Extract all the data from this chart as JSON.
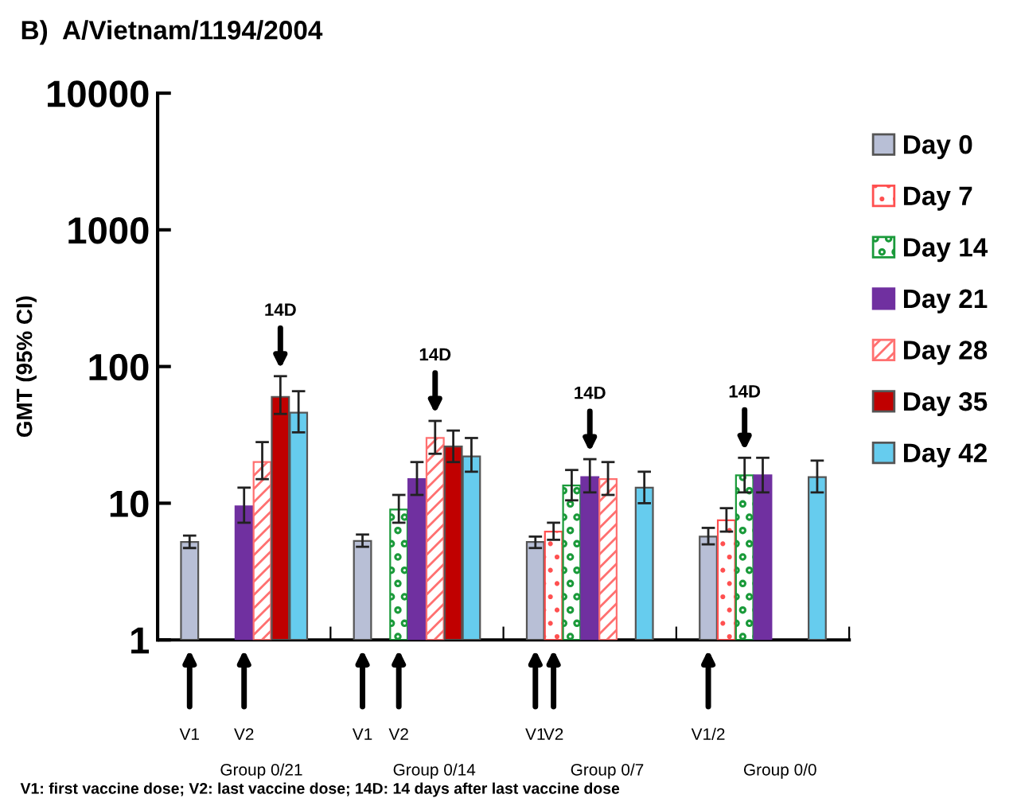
{
  "chart_data": {
    "type": "bar",
    "title": "B)  A/Vietnam/1194/2004",
    "ylabel": "GMT (95% CI)",
    "categories": [
      "Group 0/21",
      "Group 0/14",
      "Group 0/7",
      "Group 0/0"
    ],
    "log": true,
    "ylim": [
      1,
      10000
    ],
    "yticks": [
      1,
      10,
      100,
      1000,
      10000
    ],
    "grid": false,
    "legend": "right",
    "series": [
      {
        "name": "Day 0",
        "color": "#b8bfd6",
        "values": [
          5.2,
          5.3,
          5.2,
          5.7
        ],
        "errors": [
          [
            4.7,
            5.8
          ],
          [
            4.8,
            5.9
          ],
          [
            4.7,
            5.7
          ],
          [
            5.0,
            6.6
          ]
        ]
      },
      {
        "name": "Day 7",
        "color": "#ff5050",
        "values": [
          null,
          null,
          6.2,
          7.5
        ],
        "errors": [
          null,
          null,
          [
            5.4,
            7.2
          ],
          [
            6.2,
            9.2
          ]
        ]
      },
      {
        "name": "Day 14",
        "color": "#1a9a3a",
        "values": [
          null,
          9,
          13.5,
          16
        ],
        "errors": [
          null,
          [
            7.2,
            11.5
          ],
          [
            10.5,
            17.5
          ],
          [
            12,
            21.5
          ]
        ]
      },
      {
        "name": "Day 21",
        "color": "#7030a0",
        "values": [
          9.5,
          15,
          15.5,
          16
        ],
        "errors": [
          [
            7.2,
            13
          ],
          [
            11.5,
            20
          ],
          [
            12,
            21
          ],
          [
            12,
            21.5
          ]
        ]
      },
      {
        "name": "Day 28",
        "color": "#ff7070",
        "values": [
          20,
          30,
          15,
          null
        ],
        "errors": [
          [
            15,
            28
          ],
          [
            23,
            40
          ],
          [
            11.5,
            20
          ],
          null
        ]
      },
      {
        "name": "Day 35",
        "color": "#c00000",
        "values": [
          60,
          26,
          null,
          null
        ],
        "errors": [
          [
            45,
            85
          ],
          [
            20,
            34
          ],
          null,
          null
        ]
      },
      {
        "name": "Day 42",
        "color": "#66ccee",
        "values": [
          46,
          22,
          13,
          15.5
        ],
        "errors": [
          [
            33,
            66
          ],
          [
            17,
            30
          ],
          [
            10,
            17
          ],
          [
            12,
            20.5
          ]
        ]
      }
    ],
    "annotations": [
      "14D",
      "14D",
      "14D",
      "14D",
      "V1",
      "V2",
      "V1",
      "V2",
      "V1",
      "V2",
      "V1/2",
      "V1: first vaccine dose; V2: last vaccine dose; 14D: 14 days after last vaccine dose"
    ]
  }
}
